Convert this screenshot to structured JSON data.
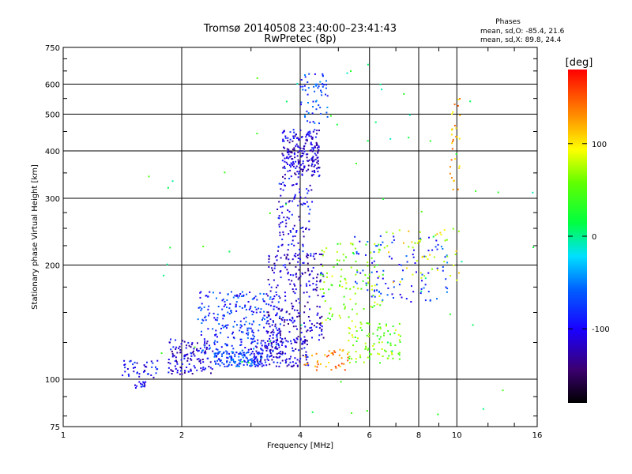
{
  "chart_data": {
    "type": "scatter",
    "title": "Tromsø 20140508 23:40:00–23:41:43",
    "subtitle": "RwPretec (8p)",
    "xlabel": "Frequency [MHz]",
    "ylabel": "Stationary phase Virtual Height [km]",
    "x_scale": "log",
    "y_scale": "log",
    "xlim": [
      1,
      16
    ],
    "ylim": [
      75,
      750
    ],
    "x_ticks": [
      1,
      2,
      4,
      6,
      8,
      10,
      16
    ],
    "x_tick_labels": [
      "1",
      "2",
      "4",
      "6",
      "8",
      "10",
      "16"
    ],
    "y_ticks": [
      75,
      100,
      200,
      300,
      400,
      500,
      600,
      750
    ],
    "y_tick_labels": [
      "75",
      "100",
      "200",
      "300",
      "400",
      "500",
      "600",
      "750"
    ],
    "grid": true,
    "phase_stats": {
      "heading": "Phases",
      "line_o": "mean, sd,O: -85.4, 21.6",
      "line_x": "mean, sd,X:  89.8, 24.4"
    },
    "colorbar": {
      "label": "[deg]",
      "range": [
        -180,
        180
      ],
      "ticks": [
        100,
        0,
        -100
      ],
      "tick_labels": [
        "100",
        "0",
        "-100"
      ]
    },
    "clusters": [
      {
        "x_range": [
          1.4,
          1.75
        ],
        "y_range": [
          101,
          112
        ],
        "phase": -100,
        "count": 40
      },
      {
        "x_range": [
          1.5,
          1.62
        ],
        "y_range": [
          94,
          99
        ],
        "phase": -95,
        "count": 15
      },
      {
        "x_range": [
          1.85,
          2.4
        ],
        "y_range": [
          103,
          128
        ],
        "phase": -110,
        "count": 130
      },
      {
        "x_range": [
          2.4,
          3.2
        ],
        "y_range": [
          108,
          118
        ],
        "phase": -75,
        "count": 140
      },
      {
        "x_range": [
          2.2,
          3.6
        ],
        "y_range": [
          118,
          170
        ],
        "phase": -80,
        "count": 260
      },
      {
        "x_range": [
          3.0,
          4.2
        ],
        "y_range": [
          108,
          128
        ],
        "phase": -105,
        "count": 160
      },
      {
        "x_range": [
          3.3,
          4.6
        ],
        "y_range": [
          125,
          215
        ],
        "phase": -115,
        "count": 240
      },
      {
        "x_range": [
          3.5,
          4.3
        ],
        "y_range": [
          210,
          340
        ],
        "phase": -100,
        "count": 110
      },
      {
        "x_range": [
          3.6,
          4.5
        ],
        "y_range": [
          340,
          455
        ],
        "phase": -110,
        "count": 220
      },
      {
        "x_range": [
          4.0,
          4.7
        ],
        "y_range": [
          470,
          640
        ],
        "phase": -70,
        "count": 60
      },
      {
        "x_range": [
          4.1,
          5.3
        ],
        "y_range": [
          105,
          120
        ],
        "phase": 130,
        "count": 40
      },
      {
        "x_range": [
          4.5,
          6.5
        ],
        "y_range": [
          140,
          230
        ],
        "phase": 60,
        "count": 110
      },
      {
        "x_range": [
          5.3,
          7.2
        ],
        "y_range": [
          110,
          140
        ],
        "phase": 60,
        "count": 90
      },
      {
        "x_range": [
          5.5,
          9.5
        ],
        "y_range": [
          160,
          240
        ],
        "phase": -80,
        "count": 100
      },
      {
        "x_range": [
          6.5,
          10.5
        ],
        "y_range": [
          180,
          250
        ],
        "phase": 90,
        "count": 50
      },
      {
        "x_range": [
          9.6,
          10.2
        ],
        "y_range": [
          300,
          560
        ],
        "phase": 120,
        "count": 30
      },
      {
        "x_range": [
          1.6,
          16
        ],
        "y_range": [
          78,
          680
        ],
        "phase": 20,
        "count": 60
      }
    ]
  }
}
